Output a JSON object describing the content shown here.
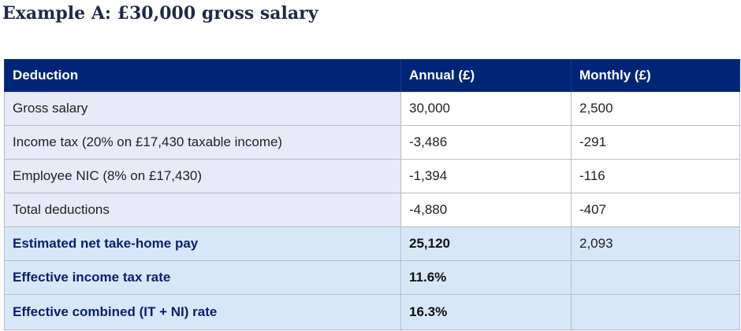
{
  "title": "Example A: £30,000 gross salary",
  "table": {
    "headers": [
      "Deduction",
      "Annual (£)",
      "Monthly (£)"
    ],
    "rows": [
      {
        "label": "Gross salary",
        "annual": "30,000",
        "monthly": "2,500"
      },
      {
        "label": "Income tax (20% on £17,430 taxable income)",
        "annual": "-3,486",
        "monthly": "-291"
      },
      {
        "label": "Employee NIC (8% on £17,430)",
        "annual": "-1,394",
        "monthly": "-116"
      },
      {
        "label": "Total deductions",
        "annual": "-4,880",
        "monthly": "-407"
      },
      {
        "label": "Estimated net take-home pay",
        "annual": "25,120",
        "monthly": "2,093"
      },
      {
        "label": "Effective income tax rate",
        "annual": "11.6%",
        "monthly": ""
      },
      {
        "label": "Effective combined (IT + NI) rate",
        "annual": "16.3%",
        "monthly": ""
      }
    ]
  }
}
